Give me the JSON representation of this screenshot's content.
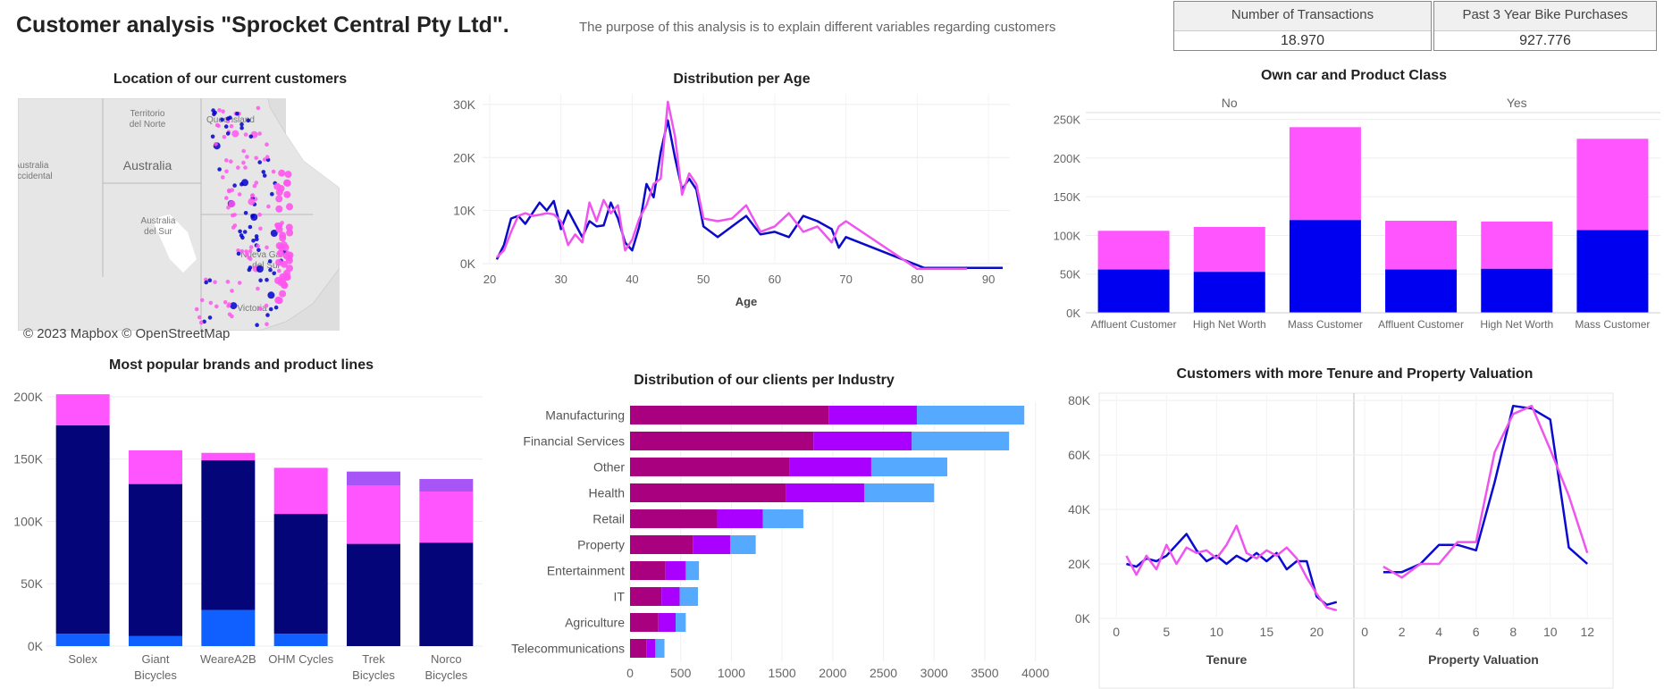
{
  "header": {
    "title": "Customer analysis \"Sprocket Central Pty Ltd\".",
    "description": "The purpose of this analysis is to explain different variables regarding customers"
  },
  "kpis": [
    {
      "label": "Number of Transactions",
      "value": "18.970"
    },
    {
      "label": "Past 3 Year Bike Purchases",
      "value": "927.776"
    }
  ],
  "map": {
    "title": "Location of our current customers",
    "credit": "© 2023 Mapbox © OpenStreetMap",
    "labels": [
      "Territorio del Norte",
      "Queensland",
      "Australia",
      "Australia Occidental",
      "Australia del Sur",
      "Nueva Gales del Sur",
      "Victoria"
    ],
    "colors": {
      "series_a": "#0000cc",
      "series_b": "#ff55ee"
    }
  },
  "chart_data": [
    {
      "id": "age",
      "type": "line",
      "title": "Distribution per Age",
      "xlabel": "Age",
      "ylabel": "",
      "xlim": [
        19,
        93
      ],
      "ylim": [
        0,
        32000
      ],
      "xticks": [
        20,
        30,
        40,
        50,
        60,
        70,
        80,
        90
      ],
      "yticks": [
        0,
        10000,
        20000,
        30000
      ],
      "ytick_labels": [
        "0K",
        "10K",
        "20K",
        "30K"
      ],
      "grid": true,
      "series": [
        {
          "color": "#0a0ac8",
          "points": [
            [
              21,
              800
            ],
            [
              22,
              3500
            ],
            [
              23,
              8500
            ],
            [
              24,
              9000
            ],
            [
              25,
              7500
            ],
            [
              26,
              9500
            ],
            [
              27,
              11500
            ],
            [
              28,
              10000
            ],
            [
              29,
              11800
            ],
            [
              30,
              6500
            ],
            [
              31,
              10000
            ],
            [
              32,
              7500
            ],
            [
              33,
              5000
            ],
            [
              34,
              8000
            ],
            [
              35,
              7000
            ],
            [
              36,
              7200
            ],
            [
              37,
              11500
            ],
            [
              38,
              8500
            ],
            [
              39,
              4000
            ],
            [
              40,
              2500
            ],
            [
              41,
              7000
            ],
            [
              42,
              15000
            ],
            [
              43,
              12500
            ],
            [
              44,
              21000
            ],
            [
              45,
              27000
            ],
            [
              46,
              20000
            ],
            [
              47,
              14000
            ],
            [
              48,
              16000
            ],
            [
              49,
              14000
            ],
            [
              50,
              7000
            ],
            [
              52,
              5000
            ],
            [
              54,
              7000
            ],
            [
              56,
              9000
            ],
            [
              58,
              5500
            ],
            [
              60,
              6000
            ],
            [
              62,
              5000
            ],
            [
              64,
              9000
            ],
            [
              66,
              8000
            ],
            [
              68,
              6500
            ],
            [
              69,
              3000
            ],
            [
              70,
              5000
            ],
            [
              81,
              -800
            ],
            [
              92,
              -800
            ]
          ]
        },
        {
          "color": "#ee55ee",
          "points": [
            [
              21,
              1200
            ],
            [
              22,
              2500
            ],
            [
              23,
              6000
            ],
            [
              24,
              9000
            ],
            [
              25,
              9500
            ],
            [
              26,
              9000
            ],
            [
              27,
              9200
            ],
            [
              28,
              9500
            ],
            [
              29,
              9300
            ],
            [
              30,
              8000
            ],
            [
              31,
              3500
            ],
            [
              32,
              5500
            ],
            [
              33,
              4000
            ],
            [
              34,
              11500
            ],
            [
              35,
              8000
            ],
            [
              36,
              12000
            ],
            [
              37,
              9500
            ],
            [
              38,
              11000
            ],
            [
              39,
              2500
            ],
            [
              40,
              4500
            ],
            [
              41,
              8500
            ],
            [
              42,
              11000
            ],
            [
              43,
              15000
            ],
            [
              44,
              16000
            ],
            [
              45,
              30500
            ],
            [
              46,
              24000
            ],
            [
              47,
              13000
            ],
            [
              48,
              17000
            ],
            [
              49,
              15000
            ],
            [
              50,
              8500
            ],
            [
              52,
              8000
            ],
            [
              54,
              8500
            ],
            [
              56,
              11000
            ],
            [
              58,
              6000
            ],
            [
              60,
              7000
            ],
            [
              62,
              9500
            ],
            [
              64,
              6000
            ],
            [
              66,
              7000
            ],
            [
              68,
              4000
            ],
            [
              69,
              7000
            ],
            [
              70,
              8000
            ],
            [
              80,
              -1000
            ],
            [
              87,
              -1000
            ]
          ]
        }
      ]
    },
    {
      "id": "car",
      "type": "bar",
      "title": "Own car and Product Class",
      "groups": [
        "No",
        "Yes"
      ],
      "categories": [
        "Affluent Customer",
        "High Net Worth",
        "Mass Customer",
        "Affluent Customer",
        "High Net Worth",
        "Mass Customer"
      ],
      "ylim": [
        0,
        260000
      ],
      "yticks": [
        0,
        50000,
        100000,
        150000,
        200000,
        250000
      ],
      "ytick_labels": [
        "0K",
        "50K",
        "100K",
        "150K",
        "200K",
        "250K"
      ],
      "stacked": true,
      "series": [
        {
          "color": "#0000f0",
          "values": [
            56000,
            53000,
            120000,
            56000,
            57000,
            107000
          ]
        },
        {
          "color": "#ff55ff",
          "values": [
            50000,
            58000,
            120000,
            63000,
            61000,
            118000
          ]
        }
      ]
    },
    {
      "id": "brands",
      "type": "bar",
      "title": "Most popular brands and product lines",
      "categories": [
        "Solex",
        "Giant Bicycles",
        "WeareA2B",
        "OHM Cycles",
        "Trek Bicycles",
        "Norco Bicycles"
      ],
      "category_lines": [
        [
          "Solex"
        ],
        [
          "Giant",
          "Bicycles"
        ],
        [
          "WeareA2B"
        ],
        [
          "OHM Cycles"
        ],
        [
          "Trek",
          "Bicycles"
        ],
        [
          "Norco",
          "Bicycles"
        ]
      ],
      "ylim": [
        0,
        210000
      ],
      "yticks": [
        0,
        50000,
        100000,
        150000,
        200000
      ],
      "ytick_labels": [
        "0K",
        "50K",
        "100K",
        "150K",
        "200K"
      ],
      "stacked": true,
      "series": [
        {
          "color": "#1060ff",
          "values": [
            10000,
            8000,
            29000,
            10000,
            0,
            0
          ]
        },
        {
          "color": "#05057a",
          "values": [
            167000,
            122000,
            120000,
            96000,
            82000,
            83000
          ]
        },
        {
          "color": "#ff55ff",
          "values": [
            25000,
            27000,
            6000,
            37000,
            47000,
            41000
          ]
        },
        {
          "color": "#a855f7",
          "values": [
            0,
            0,
            0,
            0,
            11000,
            10000
          ]
        }
      ]
    },
    {
      "id": "industry",
      "type": "bar",
      "orientation": "horizontal",
      "title": "Distribution of our clients per Industry",
      "categories": [
        "Manufacturing",
        "Financial Services",
        "Other",
        "Health",
        "Retail",
        "Property",
        "Entertainment",
        "IT",
        "Agriculture",
        "Telecommunications"
      ],
      "xlim": [
        0,
        4100
      ],
      "xticks": [
        0,
        500,
        1000,
        1500,
        2000,
        2500,
        3000,
        3500,
        4000
      ],
      "stacked": true,
      "series": [
        {
          "color": "#a8007f",
          "values": [
            1960,
            1810,
            1570,
            1540,
            860,
            620,
            350,
            310,
            280,
            160
          ]
        },
        {
          "color": "#aa00ff",
          "values": [
            870,
            970,
            810,
            770,
            450,
            370,
            200,
            180,
            170,
            90
          ]
        },
        {
          "color": "#55aaff",
          "values": [
            1060,
            960,
            750,
            690,
            400,
            250,
            130,
            180,
            100,
            90
          ]
        }
      ]
    },
    {
      "id": "tenure",
      "type": "line",
      "title": "Customers with more Tenure and Property Valuation",
      "panels": [
        {
          "xlabel": "Tenure",
          "xlim": [
            -1,
            23
          ],
          "xticks": [
            0,
            5,
            10,
            15,
            20
          ],
          "ylim": [
            0,
            82000
          ],
          "yticks": [
            0,
            20000,
            40000,
            60000,
            80000
          ],
          "ytick_labels": [
            "0K",
            "20K",
            "40K",
            "60K",
            "80K"
          ],
          "series": [
            {
              "color": "#0a0ad0",
              "points": [
                [
                  1,
                  20000
                ],
                [
                  2,
                  19000
                ],
                [
                  3,
                  22000
                ],
                [
                  4,
                  21000
                ],
                [
                  5,
                  23000
                ],
                [
                  6,
                  27000
                ],
                [
                  7,
                  31000
                ],
                [
                  8,
                  25000
                ],
                [
                  9,
                  21000
                ],
                [
                  10,
                  23000
                ],
                [
                  11,
                  20000
                ],
                [
                  12,
                  23000
                ],
                [
                  13,
                  21000
                ],
                [
                  14,
                  24000
                ],
                [
                  15,
                  21000
                ],
                [
                  16,
                  24000
                ],
                [
                  17,
                  18000
                ],
                [
                  18,
                  21000
                ],
                [
                  19,
                  21000
                ],
                [
                  20,
                  8000
                ],
                [
                  21,
                  5000
                ],
                [
                  22,
                  6000
                ]
              ]
            },
            {
              "color": "#ee55ee",
              "points": [
                [
                  1,
                  23000
                ],
                [
                  2,
                  16000
                ],
                [
                  3,
                  23000
                ],
                [
                  4,
                  18000
                ],
                [
                  5,
                  27000
                ],
                [
                  6,
                  20000
                ],
                [
                  7,
                  26000
                ],
                [
                  8,
                  24000
                ],
                [
                  9,
                  25000
                ],
                [
                  10,
                  22000
                ],
                [
                  11,
                  27000
                ],
                [
                  12,
                  34000
                ],
                [
                  13,
                  24000
                ],
                [
                  14,
                  22000
                ],
                [
                  15,
                  25000
                ],
                [
                  16,
                  23000
                ],
                [
                  17,
                  26000
                ],
                [
                  18,
                  22000
                ],
                [
                  19,
                  15000
                ],
                [
                  20,
                  9000
                ],
                [
                  21,
                  4000
                ],
                [
                  22,
                  3000
                ]
              ]
            }
          ]
        },
        {
          "xlabel": "Property Valuation",
          "xlim": [
            -0.2,
            13
          ],
          "xticks": [
            0,
            2,
            4,
            6,
            8,
            10,
            12
          ],
          "ylim": [
            0,
            82000
          ],
          "series": [
            {
              "color": "#0a0ad0",
              "points": [
                [
                  1,
                  17000
                ],
                [
                  2,
                  17000
                ],
                [
                  3,
                  20000
                ],
                [
                  4,
                  27000
                ],
                [
                  5,
                  27000
                ],
                [
                  6,
                  25000
                ],
                [
                  7,
                  50000
                ],
                [
                  8,
                  78000
                ],
                [
                  9,
                  77000
                ],
                [
                  10,
                  73000
                ],
                [
                  11,
                  26000
                ],
                [
                  12,
                  20000
                ]
              ]
            },
            {
              "color": "#ee55ee",
              "points": [
                [
                  1,
                  19000
                ],
                [
                  2,
                  15000
                ],
                [
                  3,
                  20000
                ],
                [
                  4,
                  20000
                ],
                [
                  5,
                  28000
                ],
                [
                  6,
                  28000
                ],
                [
                  7,
                  61000
                ],
                [
                  8,
                  75000
                ],
                [
                  9,
                  78000
                ],
                [
                  10,
                  62000
                ],
                [
                  11,
                  45000
                ],
                [
                  12,
                  24000
                ]
              ]
            }
          ]
        }
      ]
    }
  ]
}
